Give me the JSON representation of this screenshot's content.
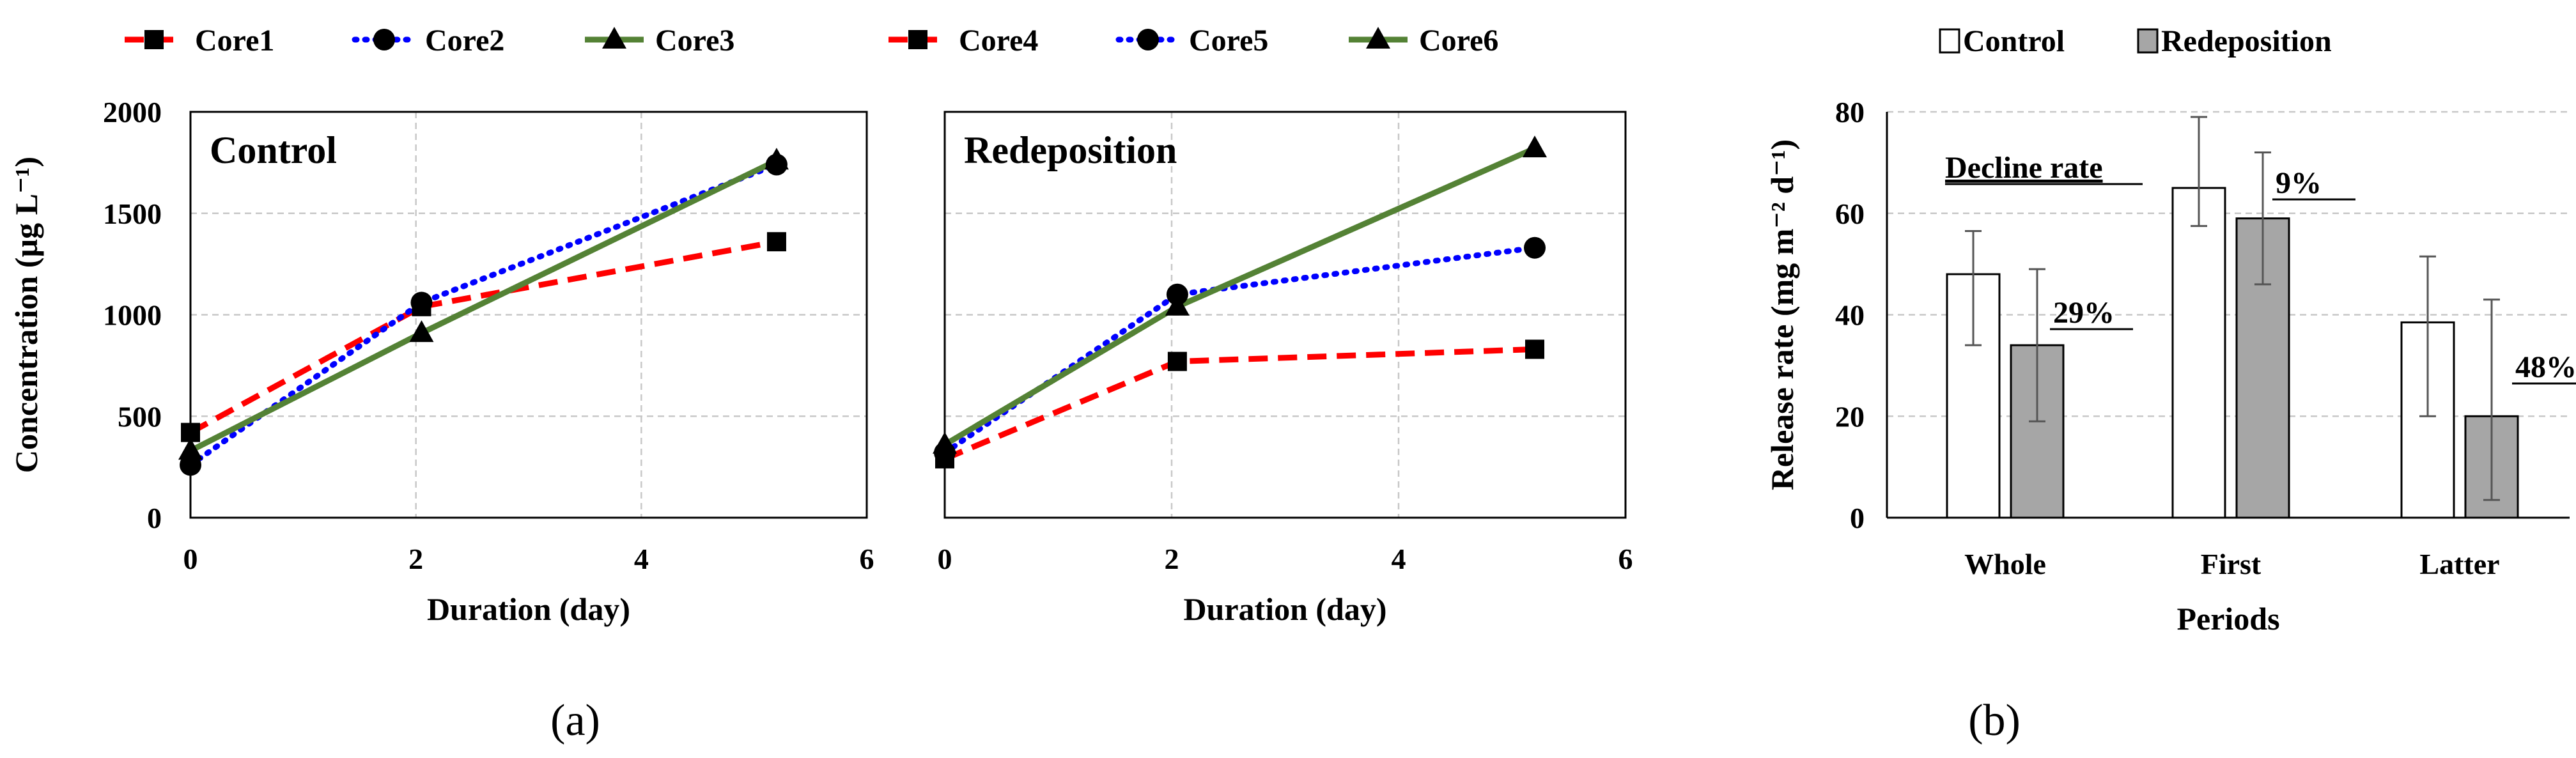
{
  "chart_data": [
    {
      "type": "line",
      "panel": "(a) left",
      "title": "Control",
      "xlabel": "Duration (day)",
      "ylabel": "Concentration (µg L⁻¹)",
      "xlim": [
        0,
        6
      ],
      "ylim": [
        0,
        2000
      ],
      "xticks": [
        0,
        2,
        4,
        6
      ],
      "yticks": [
        0,
        500,
        1000,
        1500,
        2000
      ],
      "grid": true,
      "legend_position": "top",
      "series": [
        {
          "name": "Core1",
          "color": "#ff0000",
          "line": "dashed",
          "marker": "square",
          "x": [
            0,
            2.05,
            5.2
          ],
          "y": [
            420,
            1040,
            1360
          ]
        },
        {
          "name": "Core2",
          "color": "#0000ff",
          "line": "dotted",
          "marker": "circle",
          "x": [
            0,
            2.05,
            5.2
          ],
          "y": [
            260,
            1060,
            1740
          ]
        },
        {
          "name": "Core3",
          "color": "#548235",
          "line": "solid",
          "marker": "triangle",
          "x": [
            0,
            2.05,
            5.2
          ],
          "y": [
            330,
            910,
            1760
          ]
        }
      ]
    },
    {
      "type": "line",
      "panel": "(a) right",
      "title": "Redeposition",
      "xlabel": "Duration (day)",
      "ylabel": "",
      "xlim": [
        0,
        6
      ],
      "ylim": [
        0,
        2000
      ],
      "xticks": [
        0,
        2,
        4,
        6
      ],
      "grid": true,
      "legend_position": "top",
      "series": [
        {
          "name": "Core4",
          "color": "#ff0000",
          "line": "dashed",
          "marker": "square",
          "x": [
            0,
            2.05,
            5.2
          ],
          "y": [
            290,
            770,
            830
          ]
        },
        {
          "name": "Core5",
          "color": "#0000ff",
          "line": "dotted",
          "marker": "circle",
          "x": [
            0,
            2.05,
            5.2
          ],
          "y": [
            320,
            1100,
            1330
          ]
        },
        {
          "name": "Core6",
          "color": "#548235",
          "line": "solid",
          "marker": "triangle",
          "x": [
            0,
            2.05,
            5.2
          ],
          "y": [
            360,
            1040,
            1820
          ]
        }
      ]
    },
    {
      "type": "bar",
      "panel": "(b)",
      "title": "",
      "xlabel": "Periods",
      "ylabel": "Release rate (mg m⁻² d⁻¹)",
      "ylim": [
        0,
        80
      ],
      "yticks": [
        0,
        20,
        40,
        60,
        80
      ],
      "grid": true,
      "legend_position": "top",
      "categories": [
        "Whole",
        "First",
        "Latter"
      ],
      "series": [
        {
          "name": "Control",
          "color": "#ffffff",
          "values": [
            48,
            65,
            38.5
          ],
          "err_low": [
            34,
            57.5,
            20
          ],
          "err_high": [
            56.5,
            79,
            51.5
          ]
        },
        {
          "name": "Redeposition",
          "color": "#a6a6a6",
          "values": [
            34,
            59,
            20
          ],
          "err_low": [
            19,
            46,
            3.5
          ],
          "err_high": [
            49,
            72,
            43
          ]
        }
      ],
      "annotations": {
        "heading": "Decline rate",
        "labels": [
          "29%",
          "9%",
          "48%"
        ]
      }
    }
  ],
  "captions": [
    "(a)",
    "(b)"
  ]
}
